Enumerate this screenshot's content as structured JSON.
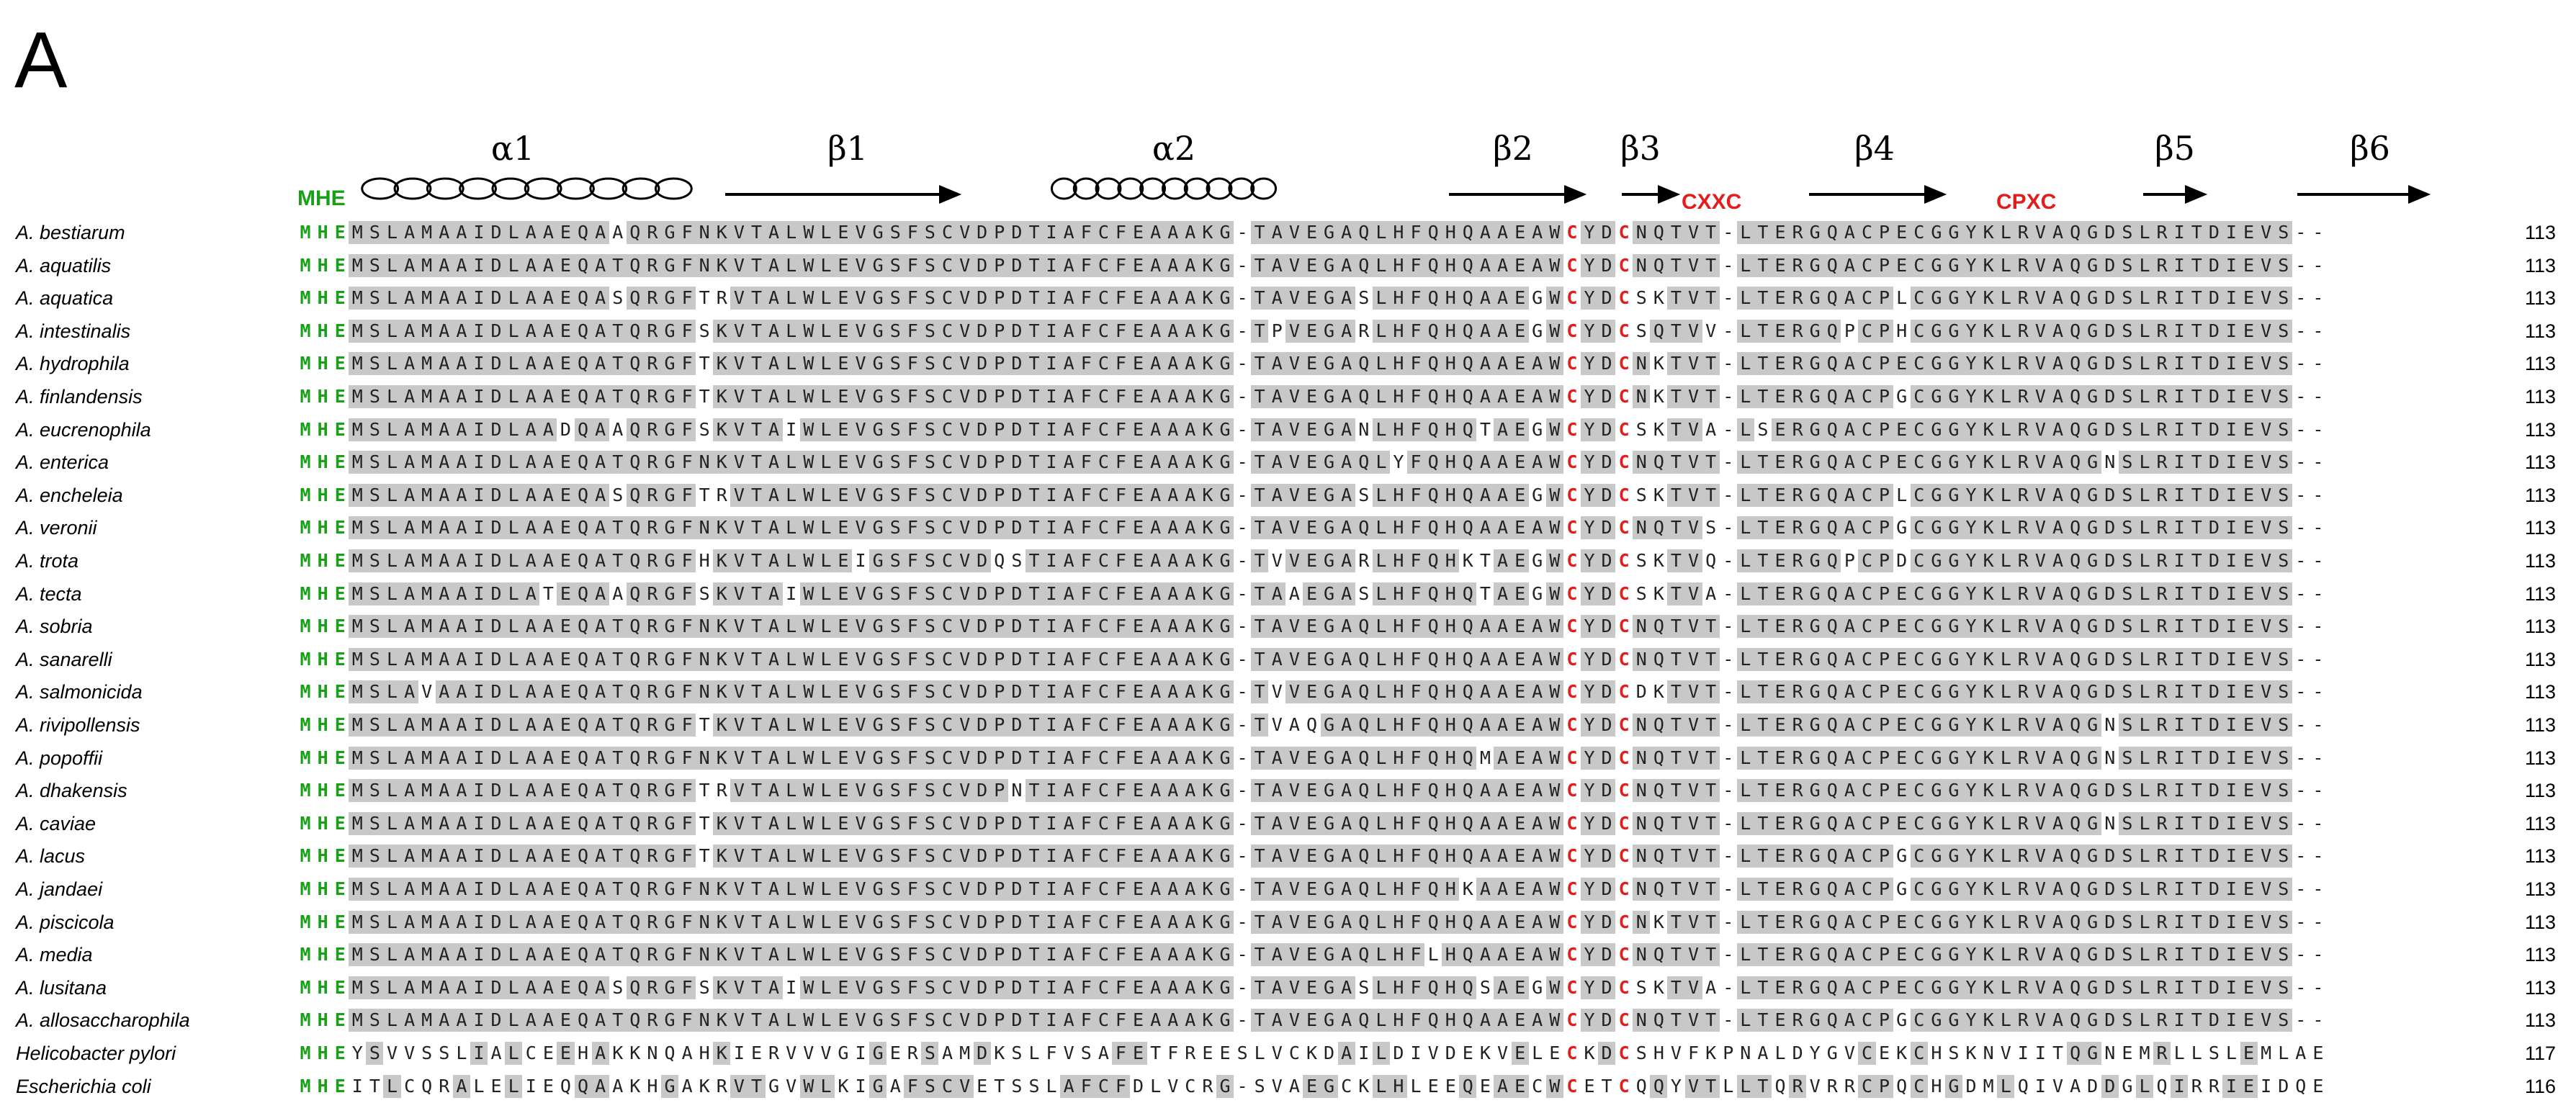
{
  "panel_label": "A",
  "secondary_structure": [
    {
      "label": "α1",
      "type": "helix"
    },
    {
      "label": "β1",
      "type": "strand"
    },
    {
      "label": "α2",
      "type": "helix"
    },
    {
      "label": "β2",
      "type": "strand"
    },
    {
      "label": "β3",
      "type": "strand"
    },
    {
      "label": "β4",
      "type": "strand"
    },
    {
      "label": "β5",
      "type": "strand"
    },
    {
      "label": "β6",
      "type": "strand"
    }
  ],
  "motifs": {
    "mhe": "MHE",
    "cxxc": "CXXC",
    "cpxc": "CPXC"
  },
  "colors": {
    "conserved_bg": "#c8c8c8",
    "mhe": "#18a018",
    "cysteine": "#e31c1c"
  },
  "sequences": [
    {
      "name": "A. bestiarum",
      "seq": "MHEMSLAMAAIDLAAEQAAQRGFNKVTALWLEVGSFSCVDPDTIAFCFEAAAKG-TAVEGAQLHFQHQAAEAWCYDCNQTVT-LTERGQACPECGGYKLRVAQGDSLRITDIEVS--",
      "length": "113"
    },
    {
      "name": "A. aquatilis",
      "seq": "MHEMSLAMAAIDLAAEQATQRGFNKVTALWLEVGSFSCVDPDTIAFCFEAAAKG-TAVEGAQLHFQHQAAEAWCYDCNQTVT-LTERGQACPECGGYKLRVAQGDSLRITDIEVS--",
      "length": "113"
    },
    {
      "name": "A. aquatica",
      "seq": "MHEMSLAMAAIDLAAEQASQRGFTRVTALWLEVGSFSCVDPDTIAFCFEAAAKG-TAVEGASLHFQHQAAEGWCYDCSKTVT-LTERGQACPLCGGYKLRVAQGDSLRITDIEVS--",
      "length": "113"
    },
    {
      "name": "A. intestinalis",
      "seq": "MHEMSLAMAAIDLAAEQATQRGFSKVTALWLEVGSFSCVDPDTIAFCFEAAAKG-TPVEGARLHFQHQAAEGWCYDCSQTVV-LTERGQPCPHCGGYKLRVAQGDSLRITDIEVS--",
      "length": "113"
    },
    {
      "name": "A. hydrophila",
      "seq": "MHEMSLAMAAIDLAAEQATQRGFTKVTALWLEVGSFSCVDPDTIAFCFEAAAKG-TAVEGAQLHFQHQAAEAWCYDCNKTVT-LTERGQACPECGGYKLRVAQGDSLRITDIEVS--",
      "length": "113"
    },
    {
      "name": "A. finlandensis",
      "seq": "MHEMSLAMAAIDLAAEQATQRGFTKVTALWLEVGSFSCVDPDTIAFCFEAAAKG-TAVEGAQLHFQHQAAEAWCYDCNKTVT-LTERGQACPGCGGYKLRVAQGDSLRITDIEVS--",
      "length": "113"
    },
    {
      "name": "A. eucrenophila",
      "seq": "MHEMSLAMAAIDLAADQAAQRGFSKVTAIWLEVGSFSCVDPDTIAFCFEAAAKG-TAVEGANLHFQHQTAEGWCYDCSKTVA-LSERGQACPECGGYKLRVAQGDSLRITDIEVS--",
      "length": "113"
    },
    {
      "name": "A. enterica",
      "seq": "MHEMSLAMAAIDLAAEQATQRGFNKVTALWLEVGSFSCVDPDTIAFCFEAAAKG-TAVEGAQLYFQHQAAEAWCYDCNQTVT-LTERGQACPECGGYKLRVAQGNSLRITDIEVS--",
      "length": "113"
    },
    {
      "name": "A. encheleia",
      "seq": "MHEMSLAMAAIDLAAEQASQRGFTRVTALWLEVGSFSCVDPDTIAFCFEAAAKG-TAVEGASLHFQHQAAEGWCYDCSKTVT-LTERGQACPLCGGYKLRVAQGDSLRITDIEVS--",
      "length": "113"
    },
    {
      "name": "A. veronii",
      "seq": "MHEMSLAMAAIDLAAEQATQRGFNKVTALWLEVGSFSCVDPDTIAFCFEAAAKG-TAVEGAQLHFQHQAAEAWCYDCNQTVS-LTERGQACPGCGGYKLRVAQGDSLRITDIEVS--",
      "length": "113"
    },
    {
      "name": "A. trota",
      "seq": "MHEMSLAMAAIDLAAEQATQRGFHKVTALWLEIGSFSCVDQSTIAFCFEAAAKG-TVVEGARLHFQHKTAEGWCYDCSKTVQ-LTERGQPCPDCGGYKLRVAQGDSLRITDIEVS--",
      "length": "113"
    },
    {
      "name": "A. tecta",
      "seq": "MHEMSLAMAAIDLATEQAAQRGFSKVTAIWLEVGSFSCVDPDTIAFCFEAAAKG-TAAEGASLHFQHQTAEGWCYDCSKTVA-LTERGQACPECGGYKLRVAQGDSLRITDIEVS--",
      "length": "113"
    },
    {
      "name": "A. sobria",
      "seq": "MHEMSLAMAAIDLAAEQATQRGFNKVTALWLEVGSFSCVDPDTIAFCFEAAAKG-TAVEGAQLHFQHQAAEAWCYDCNQTVT-LTERGQACPECGGYKLRVAQGDSLRITDIEVS--",
      "length": "113"
    },
    {
      "name": "A. sanarelli",
      "seq": "MHEMSLAMAAIDLAAEQATQRGFNKVTALWLEVGSFSCVDPDTIAFCFEAAAKG-TAVEGAQLHFQHQAAEAWCYDCNQTVT-LTERGQACPECGGYKLRVAQGDSLRITDIEVS--",
      "length": "113"
    },
    {
      "name": "A. salmonicida",
      "seq": "MHEMSLAVAAIDLAAEQATQRGFNKVTALWLEVGSFSCVDPDTIAFCFEAAAKG-TVVEGAQLHFQHQAAEAWCYDCDKTVT-LTERGQACPECGGYKLRVAQGDSLRITDIEVS--",
      "length": "113"
    },
    {
      "name": "A. rivipollensis",
      "seq": "MHEMSLAMAAIDLAAEQATQRGFTKVTALWLEVGSFSCVDPDTIAFCFEAAAKG-TVAQGAQLHFQHQAAEAWCYDCNQTVT-LTERGQACPECGGYKLRVAQGNSLRITDIEVS--",
      "length": "113"
    },
    {
      "name": "A. popoffii",
      "seq": "MHEMSLAMAAIDLAAEQATQRGFNKVTALWLEVGSFSCVDPDTIAFCFEAAAKG-TAVEGAQLHFQHQMAEAWCYDCNQTVT-LTERGQACPECGGYKLRVAQGNSLRITDIEVS--",
      "length": "113"
    },
    {
      "name": "A. dhakensis",
      "seq": "MHEMSLAMAAIDLAAEQATQRGFTRVTALWLEVGSFSCVDPNTIAFCFEAAAKG-TAVEGAQLHFQHQAAEAWCYDCNQTVT-LTERGQACPECGGYKLRVAQGDSLRITDIEVS--",
      "length": "113"
    },
    {
      "name": "A. caviae",
      "seq": "MHEMSLAMAAIDLAAEQATQRGFTKVTALWLEVGSFSCVDPDTIAFCFEAAAKG-TAVEGAQLHFQHQAAEAWCYDCNQTVT-LTERGQACPECGGYKLRVAQGNSLRITDIEVS--",
      "length": "113"
    },
    {
      "name": "A. lacus",
      "seq": "MHEMSLAMAAIDLAAEQATQRGFTKVTALWLEVGSFSCVDPDTIAFCFEAAAKG-TAVEGAQLHFQHQAAEAWCYDCNQTVT-LTERGQACPGCGGYKLRVAQGDSLRITDIEVS--",
      "length": "113"
    },
    {
      "name": "A. jandaei",
      "seq": "MHEMSLAMAAIDLAAEQATQRGFNKVTALWLEVGSFSCVDPDTIAFCFEAAAKG-TAVEGAQLHFQHKAAEAWCYDCNQTVT-LTERGQACPGCGGYKLRVAQGDSLRITDIEVS--",
      "length": "113"
    },
    {
      "name": "A. piscicola",
      "seq": "MHEMSLAMAAIDLAAEQATQRGFNKVTALWLEVGSFSCVDPDTIAFCFEAAAKG-TAVEGAQLHFQHQAAEAWCYDCNKTVT-LTERGQACPECGGYKLRVAQGDSLRITDIEVS--",
      "length": "113"
    },
    {
      "name": "A. media",
      "seq": "MHEMSLAMAAIDLAAEQATQRGFNKVTALWLEVGSFSCVDPDTIAFCFEAAAKG-TAVEGAQLHFLHQAAEAWCYDCNQTVT-LTERGQACPECGGYKLRVAQGDSLRITDIEVS--",
      "length": "113"
    },
    {
      "name": "A. lusitana",
      "seq": "MHEMSLAMAAIDLAAEQASQRGFSKVTAIWLEVGSFSCVDPDTIAFCFEAAAKG-TAVEGASLHFQHQSAEGWCYDCSKTVA-LTERGQACPECGGYKLRVAQGDSLRITDIEVS--",
      "length": "113"
    },
    {
      "name": "A. allosaccharophila",
      "seq": "MHEMSLAMAAIDLAAEQATQRGFNKVTALWLEVGSFSCVDPDTIAFCFEAAAKG-TAVEGAQLHFQHQAAEAWCYDCNQTVT-LTERGQACPGCGGYKLRVAQGDSLRITDIEVS--",
      "length": "113"
    },
    {
      "name": "Helicobacter pylori",
      "seq": "MHEYSVVSSLIALCEEHAKKNQAHKIERVVVGIGERSAMDKSLFVSAFETFREESLVCKDAILDIVDEKVELECKDCSHVFKPNALDYGVCEKCHSKNVIITQGNEMRLLSLEMLAE",
      "length": "117"
    },
    {
      "name": "Escherichia coli",
      "seq": "MHEITLCQRALELIEQQAAKHGAKRVTGVWLKIGAFSCVETSSLAFCFDLVCRG-SVAEGCKLHLEEQEAECWCETCQQYVTLLTQRVRRCPQCHGDMLQIVADDGLQIRRIEIDQE",
      "length": "116"
    }
  ]
}
